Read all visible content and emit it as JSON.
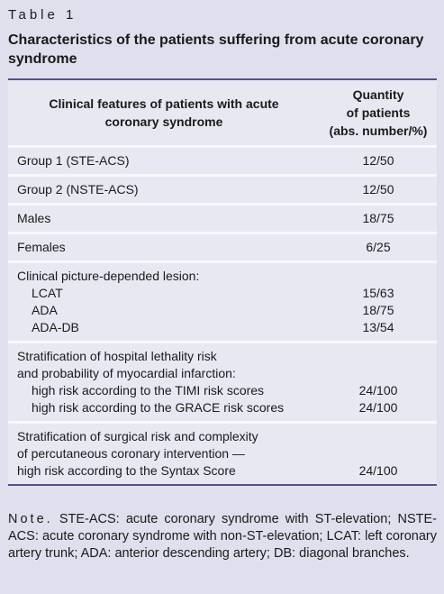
{
  "label": "Table 1",
  "title": "Characteristics of the patients suffering from acute coronary syndrome",
  "table": {
    "header": {
      "feature": "Clinical features of patients with acute coronary syndrome",
      "quantity": [
        "Quantity",
        "of patients",
        "(abs. number/%)"
      ]
    },
    "rows": [
      {
        "items": [
          {
            "name": "Group 1 (STE-ACS)",
            "value": "12/50"
          }
        ]
      },
      {
        "items": [
          {
            "name": "Group 2 (NSTE-ACS)",
            "value": "12/50"
          }
        ]
      },
      {
        "items": [
          {
            "name": "Males",
            "value": "18/75"
          }
        ]
      },
      {
        "items": [
          {
            "name": "Females",
            "value": "6/25"
          }
        ]
      },
      {
        "lines": [
          "Clinical picture-depended lesion:"
        ],
        "indent": true,
        "items": [
          {
            "name": "LCAT",
            "value": "15/63"
          },
          {
            "name": "ADA",
            "value": "18/75"
          },
          {
            "name": "ADA-DB",
            "value": "13/54"
          }
        ]
      },
      {
        "lines": [
          "Stratification of hospital lethality risk",
          "and probability of myocardial infarction:"
        ],
        "indent": true,
        "items": [
          {
            "name": "high risk according to the TIMI risk scores",
            "value": "24/100"
          },
          {
            "name": "high risk according to the GRACE risk scores",
            "value": "24/100"
          }
        ]
      },
      {
        "lines": [
          "Stratification of surgical risk and complexity",
          "of percutaneous coronary intervention —"
        ],
        "indent": false,
        "items": [
          {
            "name": "high risk according to the Syntax Score",
            "value": "24/100"
          }
        ]
      }
    ]
  },
  "note": {
    "prefix": "Note.",
    "text": "STE-ACS: acute coronary syndrome with ST-elevation; NSTE-ACS: acute coronary syndrome with non-ST-elevation; LCAT: left coronary artery trunk; ADA: anterior descending artery; DB: diagonal branches."
  }
}
